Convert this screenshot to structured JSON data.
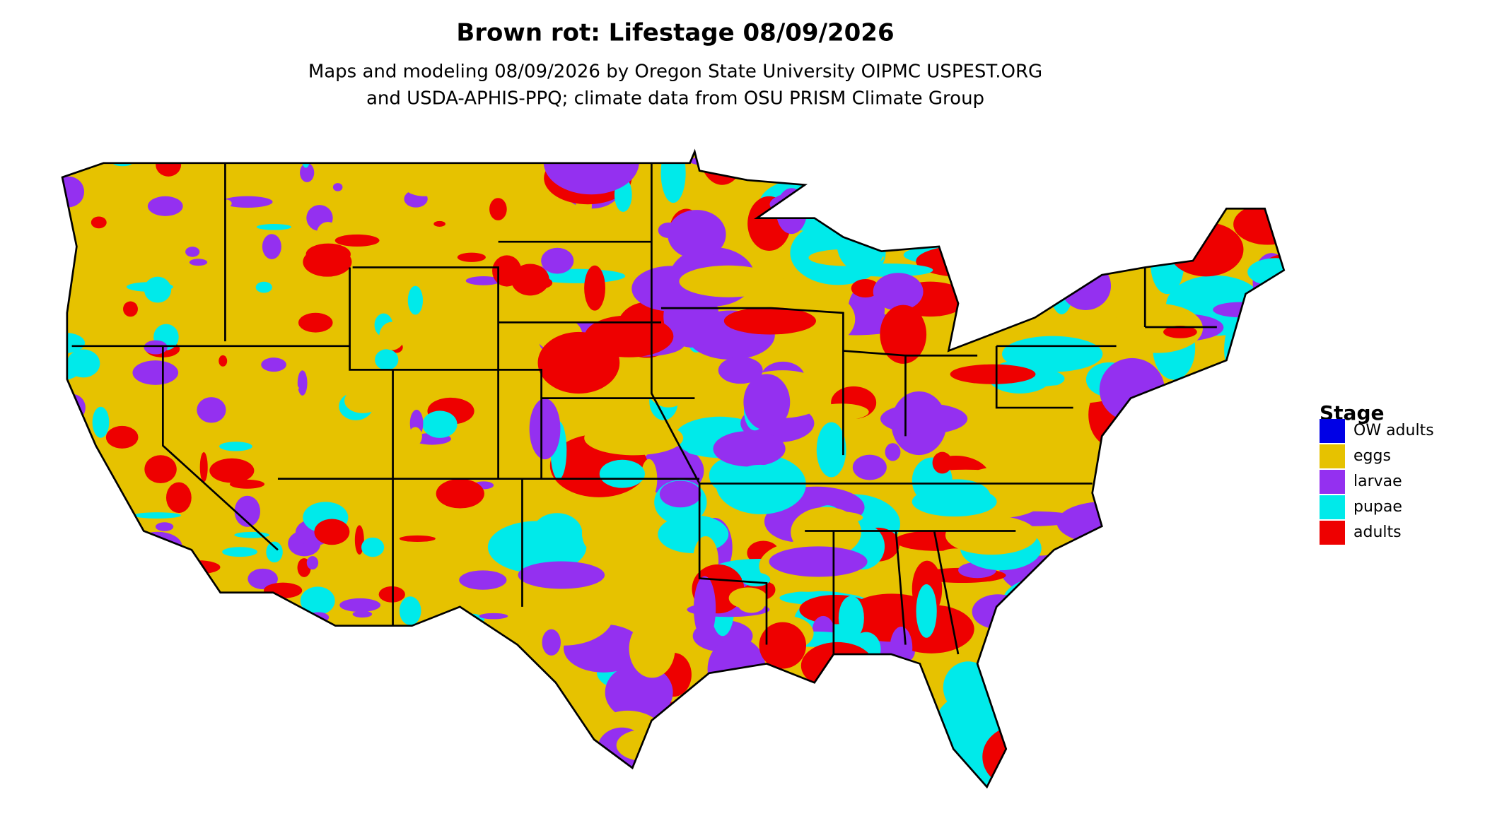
{
  "title": "Brown rot: Lifestage 08/09/2026",
  "subtitle": [
    "Maps and modeling 08/09/2026 by Oregon State University OIPMC USPEST.ORG",
    "and USDA-APHIS-PPQ; climate data from OSU PRISM Climate Group"
  ],
  "legend": {
    "title": "Stage",
    "items": [
      {
        "label": "OW adults",
        "color": "#0000e6"
      },
      {
        "label": "eggs",
        "color": "#e6c200"
      },
      {
        "label": "larvae",
        "color": "#9430f0"
      },
      {
        "label": "pupae",
        "color": "#00eaea"
      },
      {
        "label": "adults",
        "color": "#ee0000"
      }
    ]
  }
}
